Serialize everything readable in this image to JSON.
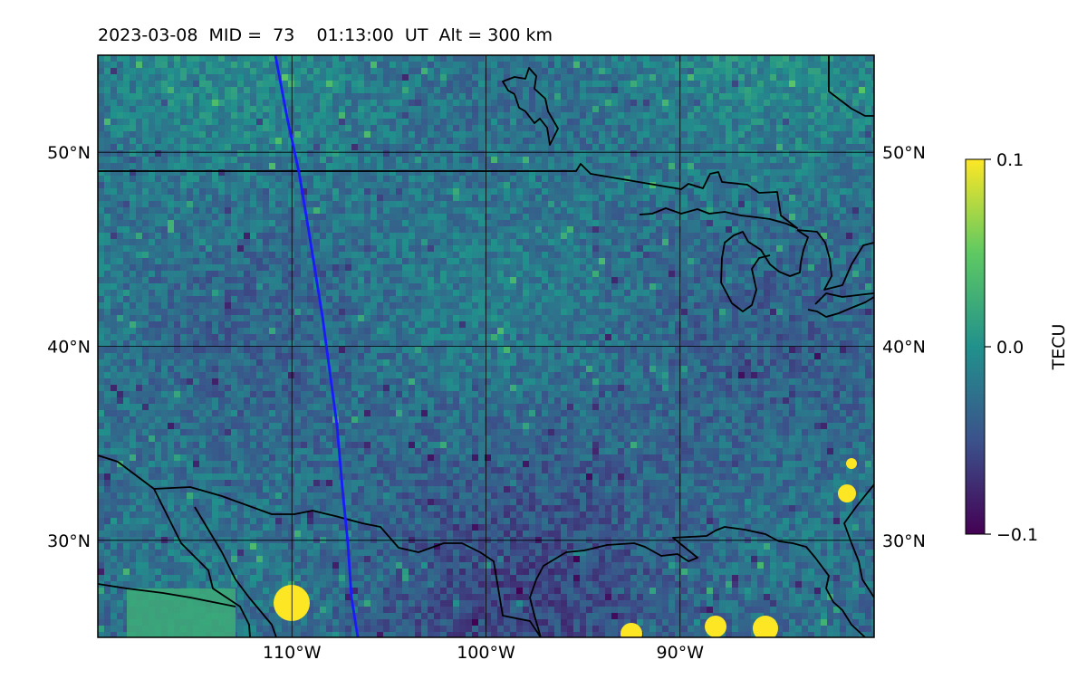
{
  "title": "2023-03-08  MID =  73    01:13:00  UT  Alt = 300 km",
  "map": {
    "lat_ticks": [
      {
        "value": 30,
        "label": "30°N"
      },
      {
        "value": 40,
        "label": "40°N"
      },
      {
        "value": 50,
        "label": "50°N"
      }
    ],
    "lon_ticks": [
      {
        "value": -110,
        "label": "110°W"
      },
      {
        "value": -100,
        "label": "100°W"
      },
      {
        "value": -90,
        "label": "90°W"
      }
    ],
    "extent": {
      "lon_min": -120,
      "lon_max": -80,
      "lat_min": 25,
      "lat_max": 55
    },
    "colormap": "viridis",
    "field_range": [
      -0.1,
      0.1
    ],
    "track_color": "#1a1aff"
  },
  "colorbar": {
    "label": "TECU",
    "ticks": [
      {
        "value": 0.1,
        "label": "0.1"
      },
      {
        "value": 0.0,
        "label": "0.0"
      },
      {
        "value": -0.1,
        "label": "−0.1"
      }
    ]
  },
  "colors": {
    "viridis_low": "#440154",
    "viridis_mid": "#21918c",
    "viridis_high": "#fde725",
    "coastline": "#000000",
    "track": "#1a1aff"
  }
}
